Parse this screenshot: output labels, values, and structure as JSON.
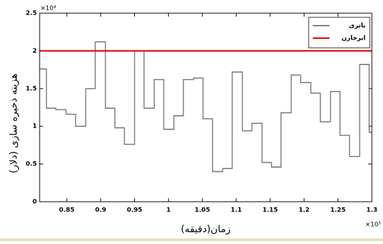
{
  "chart_data": {
    "type": "stairs",
    "x_label": "زمان(دقیقه)",
    "y_label": "هزینه ذخیره سازی (دلار)",
    "x_exponent_label": "×10⁵",
    "y_exponent_label": "×10⁴",
    "xlim": [
      0.81,
      1.3
    ],
    "ylim": [
      0,
      2.5
    ],
    "xticks": [
      0.85,
      0.9,
      0.95,
      1,
      1.05,
      1.1,
      1.15,
      1.2,
      1.25,
      1.3
    ],
    "yticks": [
      0,
      0.5,
      1,
      1.5,
      2,
      2.5
    ],
    "grid": false,
    "legend_position": "upper right",
    "series": [
      {
        "name": "باتری",
        "color": "#7f7f7f",
        "x": [
          0.81,
          0.82,
          0.834,
          0.849,
          0.863,
          0.878,
          0.892,
          0.907,
          0.921,
          0.935,
          0.95,
          0.964,
          0.979,
          0.993,
          1.008,
          1.022,
          1.037,
          1.051,
          1.065,
          1.08,
          1.094,
          1.109,
          1.123,
          1.138,
          1.152,
          1.166,
          1.181,
          1.195,
          1.21,
          1.224,
          1.239,
          1.253,
          1.267,
          1.282,
          1.296
        ],
        "values": [
          1.76,
          1.24,
          1.22,
          1.16,
          1.0,
          1.5,
          2.12,
          1.24,
          0.98,
          0.76,
          2.0,
          1.24,
          1.62,
          0.96,
          1.14,
          1.62,
          1.64,
          1.1,
          0.4,
          0.44,
          1.72,
          0.94,
          1.04,
          0.52,
          0.46,
          1.18,
          1.68,
          1.58,
          1.44,
          1.06,
          1.46,
          0.88,
          0.6,
          1.82,
          0.92
        ]
      },
      {
        "name": "ابرخازن",
        "color": "#e60000",
        "x": [
          0.81,
          1.3
        ],
        "values": [
          2,
          2
        ]
      }
    ]
  }
}
